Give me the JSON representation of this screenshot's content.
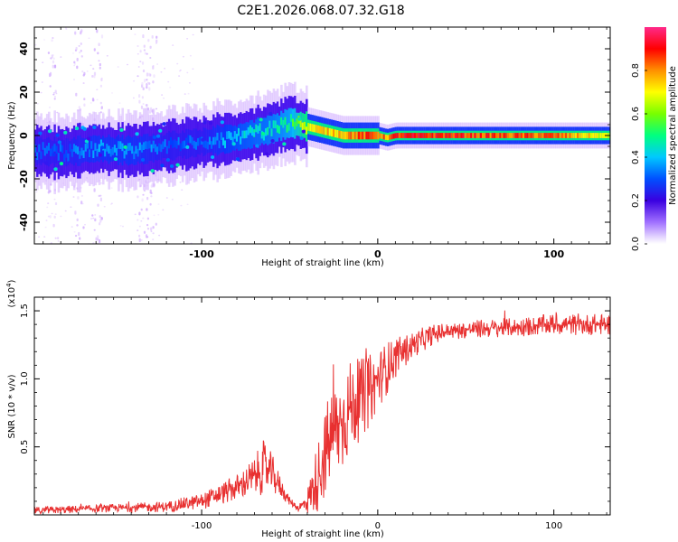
{
  "title": "C2E1.2026.068.07.32.G18",
  "chart_data": [
    {
      "type": "heatmap",
      "name": "spectrogram",
      "xlabel": "Height of straight line (km)",
      "ylabel": "Frequency (Hz)",
      "xlim": [
        -195,
        132
      ],
      "ylim": [
        -50,
        50
      ],
      "x_ticks": [
        -100,
        0,
        100
      ],
      "y_ticks": [
        -40,
        -20,
        0,
        20,
        40
      ],
      "x_tick_labels": [
        "-100",
        "0",
        "100"
      ],
      "y_tick_labels": [
        "-40",
        "-20",
        "0",
        "20",
        "40"
      ],
      "colorbar": {
        "label": "Normalized spectral amplitude",
        "range": [
          0,
          1
        ],
        "ticks": [
          0.0,
          0.2,
          0.4,
          0.6,
          0.8
        ],
        "tick_labels": [
          "0.0",
          "0.2",
          "0.4",
          "0.6",
          "0.8"
        ],
        "colormap": [
          "#ffffff",
          "#c89cff",
          "#5000e8",
          "#0040ff",
          "#00c8ff",
          "#00ff7a",
          "#78ff00",
          "#ffff00",
          "#ff9000",
          "#ff0000",
          "#ff2a8a"
        ]
      },
      "ridge_centerline": {
        "x": [
          -195,
          -180,
          -160,
          -140,
          -120,
          -100,
          -80,
          -60,
          -50,
          -40,
          -30,
          -20,
          -10,
          0,
          5,
          10,
          20,
          40,
          60,
          80,
          100,
          132
        ],
        "y": [
          -7,
          -8,
          -6,
          -7,
          -5,
          -3,
          -1,
          3,
          6,
          4,
          2,
          0,
          0,
          0,
          -1,
          0,
          0,
          0,
          0,
          0,
          0,
          0
        ],
        "peak_amplitude": [
          0.35,
          0.35,
          0.4,
          0.4,
          0.35,
          0.35,
          0.45,
          0.5,
          0.55,
          0.75,
          0.8,
          0.85,
          0.9,
          0.9,
          0.85,
          0.95,
          0.95,
          0.95,
          0.92,
          0.9,
          0.9,
          0.7
        ]
      },
      "noise_bands_x": [
        -185,
        -170,
        -160,
        -134,
        -129
      ]
    },
    {
      "type": "line",
      "name": "snr",
      "xlabel": "Height of straight line (km)",
      "ylabel": "SNR (10 * v/v)",
      "y_exponent_label": "(x10",
      "y_exponent_power": "4",
      "y_exponent_close": ")",
      "xlim": [
        -195,
        132
      ],
      "ylim": [
        0,
        1.6
      ],
      "x_ticks": [
        -100,
        0,
        100
      ],
      "y_ticks": [
        0.5,
        1.0,
        1.5
      ],
      "x_tick_labels": [
        "-100",
        "0",
        "100"
      ],
      "y_tick_labels": [
        "0.5",
        "1.0",
        "1.5"
      ],
      "series_color": "#e83030",
      "envelope": {
        "x": [
          -195,
          -150,
          -120,
          -100,
          -90,
          -80,
          -70,
          -65,
          -60,
          -55,
          -50,
          -45,
          -40,
          -35,
          -30,
          -25,
          -20,
          -15,
          -10,
          -5,
          0,
          5,
          10,
          20,
          30,
          40,
          60,
          80,
          100,
          120,
          132
        ],
        "y": [
          0.03,
          0.05,
          0.06,
          0.1,
          0.15,
          0.2,
          0.28,
          0.35,
          0.3,
          0.2,
          0.1,
          0.05,
          0.1,
          0.25,
          0.45,
          0.6,
          0.7,
          0.8,
          0.85,
          0.9,
          1.0,
          1.08,
          1.15,
          1.25,
          1.32,
          1.35,
          1.37,
          1.38,
          1.4,
          1.4,
          1.4
        ],
        "noise_amplitude": [
          0.03,
          0.03,
          0.04,
          0.06,
          0.08,
          0.1,
          0.15,
          0.2,
          0.15,
          0.08,
          0.03,
          0.03,
          0.1,
          0.25,
          0.35,
          0.4,
          0.4,
          0.35,
          0.3,
          0.28,
          0.22,
          0.2,
          0.15,
          0.1,
          0.08,
          0.06,
          0.07,
          0.07,
          0.08,
          0.08,
          0.08
        ]
      }
    }
  ]
}
